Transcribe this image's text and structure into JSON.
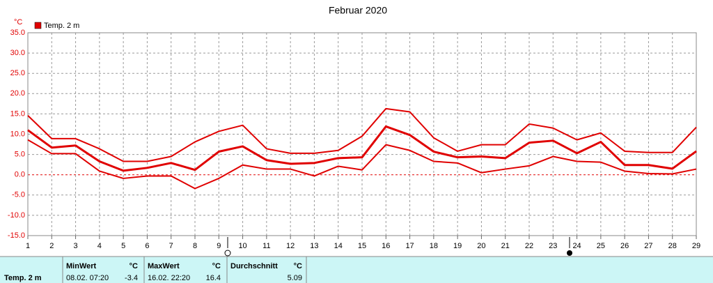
{
  "chart_data": {
    "type": "line",
    "title": "Februar 2020",
    "y_unit": "°C",
    "legend": "Temp. 2 m",
    "legend_color": "#e00000",
    "x": [
      1,
      2,
      3,
      4,
      5,
      6,
      7,
      8,
      9,
      10,
      11,
      12,
      13,
      14,
      15,
      16,
      17,
      18,
      19,
      20,
      21,
      22,
      23,
      24,
      25,
      26,
      27,
      28,
      29
    ],
    "series": [
      {
        "color": "#e00000",
        "width": 2,
        "values": [
          14.6,
          8.9,
          8.9,
          6.4,
          3.3,
          3.3,
          4.5,
          8.1,
          10.7,
          12.2,
          6.4,
          5.3,
          5.3,
          6.0,
          9.5,
          16.3,
          15.5,
          9.1,
          5.8,
          7.4,
          7.4,
          12.5,
          11.5,
          8.6,
          10.3,
          5.8,
          5.5,
          5.5,
          11.7
        ]
      },
      {
        "color": "#e00000",
        "width": 3,
        "values": [
          11.0,
          6.7,
          7.2,
          3.3,
          1.0,
          1.7,
          2.9,
          1.2,
          5.7,
          7.0,
          3.6,
          2.7,
          2.9,
          4.1,
          4.3,
          11.9,
          9.8,
          5.7,
          4.3,
          4.5,
          4.1,
          7.9,
          8.4,
          5.3,
          8.1,
          2.4,
          2.4,
          1.5,
          5.8
        ]
      },
      {
        "color": "#e00000",
        "width": 2,
        "values": [
          8.6,
          5.2,
          5.2,
          0.9,
          -0.9,
          -0.3,
          -0.3,
          -3.4,
          -0.9,
          2.4,
          1.4,
          1.4,
          -0.3,
          2.1,
          1.2,
          7.4,
          6.0,
          3.3,
          2.9,
          0.5,
          1.4,
          2.2,
          4.5,
          3.3,
          3.1,
          0.9,
          0.3,
          0.2,
          1.4
        ]
      }
    ],
    "xlim": [
      1,
      29
    ],
    "xticks": [
      1,
      2,
      3,
      4,
      5,
      6,
      7,
      8,
      9,
      10,
      11,
      12,
      13,
      14,
      15,
      16,
      17,
      18,
      19,
      20,
      21,
      22,
      23,
      24,
      25,
      26,
      27,
      28,
      29
    ],
    "ylim": [
      -15,
      35
    ],
    "yticks": [
      {
        "value": 35,
        "label": "35.0"
      },
      {
        "value": 30,
        "label": "30.0"
      },
      {
        "value": 25,
        "label": "25.0"
      },
      {
        "value": 20,
        "label": "20.0"
      },
      {
        "value": 15,
        "label": "15.0"
      },
      {
        "value": 10,
        "label": "10.0"
      },
      {
        "value": 5,
        "label": "5.0"
      },
      {
        "value": 0,
        "label": "0.0"
      },
      {
        "value": -5,
        "label": "-5.0"
      },
      {
        "value": -10,
        "label": "-10.0"
      },
      {
        "value": -15,
        "label": "-15.0"
      }
    ],
    "grid": true
  },
  "stats": {
    "label": "Temp. 2 m",
    "min": {
      "header": "MinWert",
      "unit": "°C",
      "date": "08.02.  07:20",
      "value": "-3.4"
    },
    "max": {
      "header": "MaxWert",
      "unit": "°C",
      "date": "16.02.  22:20",
      "value": "16.4"
    },
    "avg": {
      "header": "Durchschnitt",
      "unit": "°C",
      "value": "5.09"
    }
  }
}
